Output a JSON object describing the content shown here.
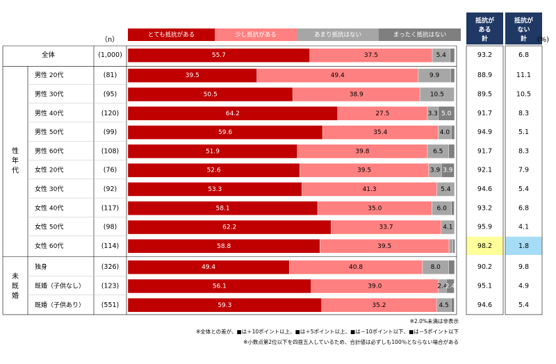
{
  "n_label": "（n）",
  "percent_unit": "(%)",
  "sum_headers": {
    "resistant": "抵抗が ある 計",
    "not_resistant": "抵抗が ない 計"
  },
  "group_labels": {
    "gender_age": "性 年 代",
    "marital": "未 既 婚"
  },
  "colors": {
    "very": "#c00000",
    "somewhat": "#ff8080",
    "not_much": "#a6a6a6",
    "not_at_all": "#7f7f7f",
    "sum_header": "#1f3864",
    "highlight_plus5": "#ffff99",
    "highlight_minus5": "#a6dcf5"
  },
  "notes": [
    "※2.0%未満は非表示",
    "※全体との差が、■は＋10ポイント以上、■は＋5ポイント以上、■は－10ポイント以下、■は－5ポイント以下",
    "※小数点第2位以下を四捨五入しているため、合計値は必ずしも100％とならない場合がある"
  ],
  "chart_data": {
    "type": "bar",
    "stacked": true,
    "orientation": "horizontal",
    "xlim": [
      0,
      100
    ],
    "legend_position": "top",
    "series": [
      {
        "name": "とても抵抗がある",
        "color": "#c00000",
        "values": [
          55.7,
          39.5,
          50.5,
          64.2,
          59.6,
          51.9,
          52.6,
          53.3,
          58.1,
          62.2,
          58.8,
          49.4,
          56.1,
          59.3
        ]
      },
      {
        "name": "少し抵抗がある",
        "color": "#ff8080",
        "values": [
          37.5,
          49.4,
          38.9,
          27.5,
          35.4,
          39.8,
          39.5,
          41.3,
          35.0,
          33.7,
          39.5,
          40.8,
          39.0,
          35.2
        ]
      },
      {
        "name": "あまり抵抗はない",
        "color": "#a6a6a6",
        "values": [
          5.4,
          9.9,
          10.5,
          3.3,
          4.0,
          6.5,
          3.9,
          5.4,
          6.0,
          4.1,
          1.2,
          8.0,
          2.4,
          4.5
        ]
      },
      {
        "name": "まったく抵抗はない",
        "color": "#7f7f7f",
        "values": [
          1.4,
          1.2,
          0.0,
          5.0,
          1.0,
          1.8,
          3.9,
          0.0,
          0.8,
          0.0,
          0.6,
          1.8,
          2.4,
          0.9
        ]
      }
    ],
    "rows": [
      {
        "label": "全体",
        "n": "(1,000)",
        "sum_yes": "93.2",
        "sum_no": "6.8"
      },
      {
        "label": "男性 20代",
        "n": "(81)",
        "sum_yes": "88.9",
        "sum_no": "11.1"
      },
      {
        "label": "男性 30代",
        "n": "(95)",
        "sum_yes": "89.5",
        "sum_no": "10.5"
      },
      {
        "label": "男性 40代",
        "n": "(120)",
        "sum_yes": "91.7",
        "sum_no": "8.3"
      },
      {
        "label": "男性 50代",
        "n": "(99)",
        "sum_yes": "94.9",
        "sum_no": "5.1"
      },
      {
        "label": "男性 60代",
        "n": "(108)",
        "sum_yes": "91.7",
        "sum_no": "8.3"
      },
      {
        "label": "女性 20代",
        "n": "(76)",
        "sum_yes": "92.1",
        "sum_no": "7.9"
      },
      {
        "label": "女性 30代",
        "n": "(92)",
        "sum_yes": "94.6",
        "sum_no": "5.4"
      },
      {
        "label": "女性 40代",
        "n": "(117)",
        "sum_yes": "93.2",
        "sum_no": "6.8"
      },
      {
        "label": "女性 50代",
        "n": "(98)",
        "sum_yes": "95.9",
        "sum_no": "4.1"
      },
      {
        "label": "女性 60代",
        "n": "(114)",
        "sum_yes": "98.2",
        "sum_no": "1.8",
        "sum_yes_highlight": "plus5",
        "sum_no_highlight": "minus5"
      },
      {
        "label": "独身",
        "n": "(326)",
        "sum_yes": "90.2",
        "sum_no": "9.8"
      },
      {
        "label": "既婚（子供なし）",
        "n": "(123)",
        "sum_yes": "95.1",
        "sum_no": "4.9"
      },
      {
        "label": "既婚（子供あり）",
        "n": "(551)",
        "sum_yes": "94.6",
        "sum_no": "5.4"
      }
    ]
  }
}
